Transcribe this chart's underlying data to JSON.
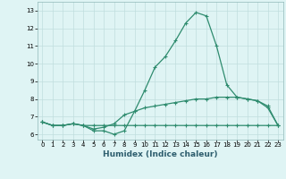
{
  "x": [
    0,
    1,
    2,
    3,
    4,
    5,
    6,
    7,
    8,
    9,
    10,
    11,
    12,
    13,
    14,
    15,
    16,
    17,
    18,
    19,
    20,
    21,
    22,
    23
  ],
  "line1": [
    6.7,
    6.5,
    6.5,
    6.6,
    6.5,
    6.2,
    6.2,
    6.0,
    6.2,
    7.3,
    8.5,
    9.8,
    10.4,
    11.3,
    12.3,
    12.9,
    12.7,
    11.0,
    8.8,
    8.1,
    8.0,
    7.9,
    7.5,
    6.5
  ],
  "line2": [
    6.7,
    6.5,
    6.5,
    6.6,
    6.5,
    6.3,
    6.4,
    6.6,
    7.1,
    7.3,
    7.5,
    7.6,
    7.7,
    7.8,
    7.9,
    8.0,
    8.0,
    8.1,
    8.1,
    8.1,
    8.0,
    7.9,
    7.6,
    6.5
  ],
  "line3": [
    6.7,
    6.5,
    6.5,
    6.6,
    6.5,
    6.5,
    6.5,
    6.5,
    6.5,
    6.5,
    6.5,
    6.5,
    6.5,
    6.5,
    6.5,
    6.5,
    6.5,
    6.5,
    6.5,
    6.5,
    6.5,
    6.5,
    6.5,
    6.5
  ],
  "line_color": "#2E8B6E",
  "bg_color": "#DFF4F4",
  "grid_color": "#C0DEDE",
  "xlabel": "Humidex (Indice chaleur)",
  "ylim": [
    5.7,
    13.5
  ],
  "xlim": [
    -0.5,
    23.5
  ],
  "yticks": [
    6,
    7,
    8,
    9,
    10,
    11,
    12,
    13
  ],
  "xtick_labels": [
    "0",
    "1",
    "2",
    "3",
    "4",
    "5",
    "6",
    "7",
    "8",
    "9",
    "10",
    "11",
    "12",
    "13",
    "14",
    "15",
    "16",
    "17",
    "18",
    "19",
    "20",
    "21",
    "22",
    "23"
  ],
  "marker": "+",
  "markersize": 3.5,
  "linewidth": 0.9,
  "tick_fontsize": 5.0,
  "xlabel_fontsize": 6.5
}
